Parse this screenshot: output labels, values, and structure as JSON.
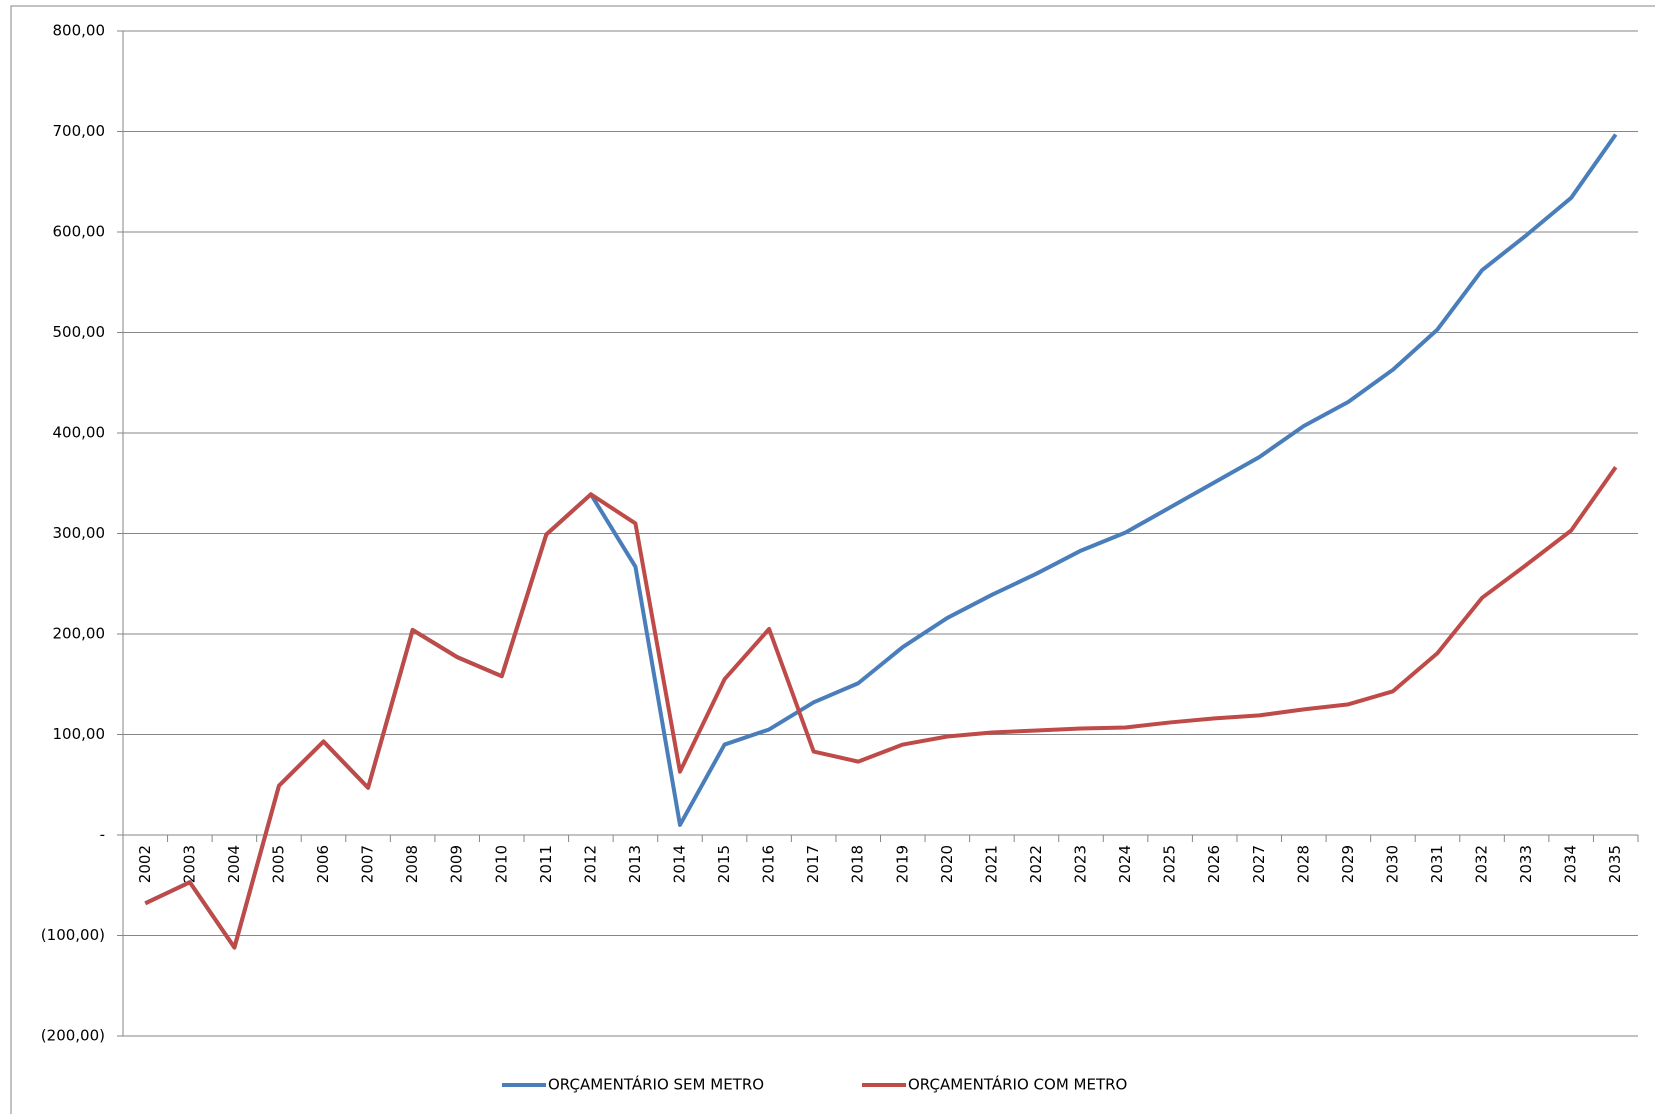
{
  "chart_data": {
    "type": "line",
    "categories": [
      "2002",
      "2003",
      "2004",
      "2005",
      "2006",
      "2007",
      "2008",
      "2009",
      "2010",
      "2011",
      "2012",
      "2013",
      "2014",
      "2015",
      "2016",
      "2017",
      "2018",
      "2019",
      "2020",
      "2021",
      "2022",
      "2023",
      "2024",
      "2025",
      "2026",
      "2027",
      "2028",
      "2029",
      "2030",
      "2031",
      "2032",
      "2033",
      "2034",
      "2035"
    ],
    "series": [
      {
        "name": "ORÇAMENTÁRIO SEM METRO",
        "color": "#4a7ebb",
        "values": [
          -68,
          -47,
          -112,
          49,
          93,
          47,
          204,
          177,
          158,
          299,
          339,
          267,
          10,
          90,
          105,
          132,
          151,
          187,
          216,
          239,
          260,
          283,
          301,
          326,
          351,
          376,
          407,
          431,
          463,
          503,
          562,
          597,
          634,
          697
        ]
      },
      {
        "name": "ORÇAMENTÁRIO COM METRO",
        "color": "#be4b48",
        "values": [
          -68,
          -47,
          -112,
          49,
          93,
          47,
          204,
          177,
          158,
          299,
          339,
          310,
          63,
          155,
          205,
          83,
          73,
          90,
          98,
          102,
          104,
          106,
          107,
          112,
          116,
          119,
          125,
          130,
          143,
          181,
          236,
          269,
          303,
          366
        ]
      }
    ],
    "ylim": [
      -200,
      800
    ],
    "yticks": [
      {
        "value": -200,
        "label": "(200,00)"
      },
      {
        "value": -100,
        "label": "(100,00)"
      },
      {
        "value": 0,
        "label": "-"
      },
      {
        "value": 100,
        "label": "100,00"
      },
      {
        "value": 200,
        "label": "200,00"
      },
      {
        "value": 300,
        "label": "300,00"
      },
      {
        "value": 400,
        "label": "400,00"
      },
      {
        "value": 500,
        "label": "500,00"
      },
      {
        "value": 600,
        "label": "600,00"
      },
      {
        "value": 700,
        "label": "700,00"
      },
      {
        "value": 800,
        "label": "800,00"
      }
    ],
    "grid": true,
    "legend": "bottom"
  }
}
